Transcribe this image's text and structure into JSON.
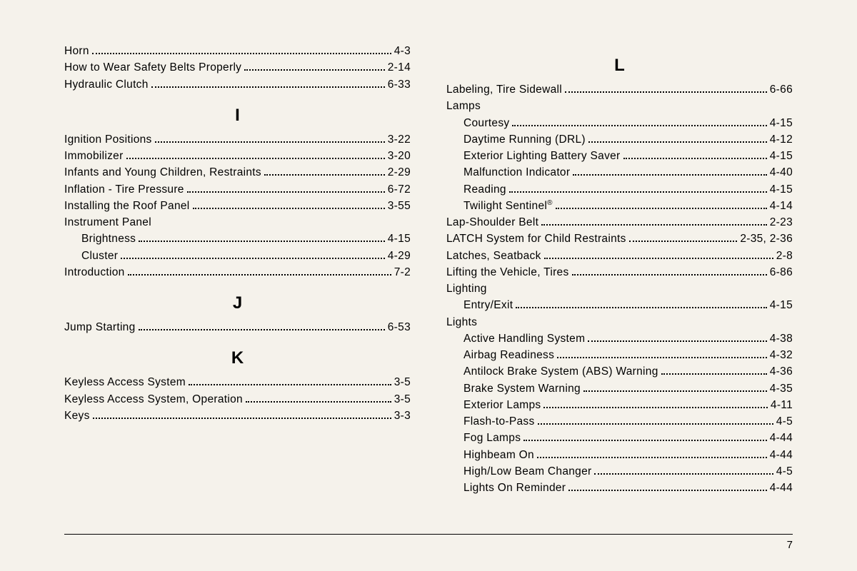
{
  "page_number": "7",
  "left_column": [
    {
      "type": "entry",
      "label": "Horn",
      "page": "4-3"
    },
    {
      "type": "entry",
      "label": "How to Wear Safety Belts Properly",
      "page": "2-14"
    },
    {
      "type": "entry",
      "label": "Hydraulic Clutch",
      "page": "6-33"
    },
    {
      "type": "heading",
      "text": "I"
    },
    {
      "type": "entry",
      "label": "Ignition Positions",
      "page": "3-22"
    },
    {
      "type": "entry",
      "label": "Immobilizer",
      "page": "3-20"
    },
    {
      "type": "entry",
      "label": "Infants and Young Children, Restraints",
      "page": "2-29"
    },
    {
      "type": "entry",
      "label": "Inflation - Tire Pressure",
      "page": "6-72"
    },
    {
      "type": "entry",
      "label": "Installing the Roof Panel",
      "page": "3-55"
    },
    {
      "type": "group",
      "label": "Instrument Panel"
    },
    {
      "type": "entry",
      "sub": true,
      "label": "Brightness",
      "page": "4-15"
    },
    {
      "type": "entry",
      "sub": true,
      "label": "Cluster",
      "page": "4-29"
    },
    {
      "type": "entry",
      "label": "Introduction",
      "page": "7-2"
    },
    {
      "type": "heading",
      "text": "J"
    },
    {
      "type": "entry",
      "label": "Jump Starting",
      "page": "6-53"
    },
    {
      "type": "heading",
      "text": "K"
    },
    {
      "type": "entry",
      "label": "Keyless Access System",
      "page": "3-5"
    },
    {
      "type": "entry",
      "label": "Keyless Access System, Operation",
      "page": "3-5"
    },
    {
      "type": "entry",
      "label": "Keys",
      "page": "3-3"
    }
  ],
  "right_column": [
    {
      "type": "heading",
      "text": "L"
    },
    {
      "type": "entry",
      "label": "Labeling, Tire Sidewall",
      "page": "6-66"
    },
    {
      "type": "group",
      "label": "Lamps"
    },
    {
      "type": "entry",
      "sub": true,
      "label": "Courtesy",
      "page": "4-15"
    },
    {
      "type": "entry",
      "sub": true,
      "label": "Daytime Running (DRL)",
      "page": "4-12"
    },
    {
      "type": "entry",
      "sub": true,
      "label": "Exterior Lighting Battery Saver",
      "page": "4-15"
    },
    {
      "type": "entry",
      "sub": true,
      "label": "Malfunction Indicator",
      "page": "4-40"
    },
    {
      "type": "entry",
      "sub": true,
      "label": "Reading",
      "page": "4-15"
    },
    {
      "type": "entry",
      "sub": true,
      "label": "Twilight Sentinel",
      "reg": true,
      "page": "4-14"
    },
    {
      "type": "entry",
      "label": "Lap-Shoulder Belt",
      "page": "2-23"
    },
    {
      "type": "entry",
      "label": "LATCH System for Child Restraints",
      "page": "2-35, 2-36"
    },
    {
      "type": "entry",
      "label": "Latches, Seatback",
      "page": "2-8"
    },
    {
      "type": "entry",
      "label": "Lifting the Vehicle, Tires",
      "page": "6-86"
    },
    {
      "type": "group",
      "label": "Lighting"
    },
    {
      "type": "entry",
      "sub": true,
      "label": "Entry/Exit",
      "page": "4-15"
    },
    {
      "type": "group",
      "label": "Lights"
    },
    {
      "type": "entry",
      "sub": true,
      "label": "Active Handling System",
      "page": "4-38"
    },
    {
      "type": "entry",
      "sub": true,
      "label": "Airbag Readiness",
      "page": "4-32"
    },
    {
      "type": "entry",
      "sub": true,
      "label": "Antilock Brake System (ABS) Warning",
      "page": "4-36"
    },
    {
      "type": "entry",
      "sub": true,
      "label": "Brake System Warning",
      "page": "4-35"
    },
    {
      "type": "entry",
      "sub": true,
      "label": "Exterior Lamps",
      "page": "4-11"
    },
    {
      "type": "entry",
      "sub": true,
      "label": "Flash-to-Pass",
      "page": "4-5"
    },
    {
      "type": "entry",
      "sub": true,
      "label": "Fog Lamps",
      "page": "4-44"
    },
    {
      "type": "entry",
      "sub": true,
      "label": "Highbeam On",
      "page": "4-44"
    },
    {
      "type": "entry",
      "sub": true,
      "label": "High/Low Beam Changer",
      "page": "4-5"
    },
    {
      "type": "entry",
      "sub": true,
      "label": "Lights On Reminder",
      "page": "4-44"
    }
  ]
}
